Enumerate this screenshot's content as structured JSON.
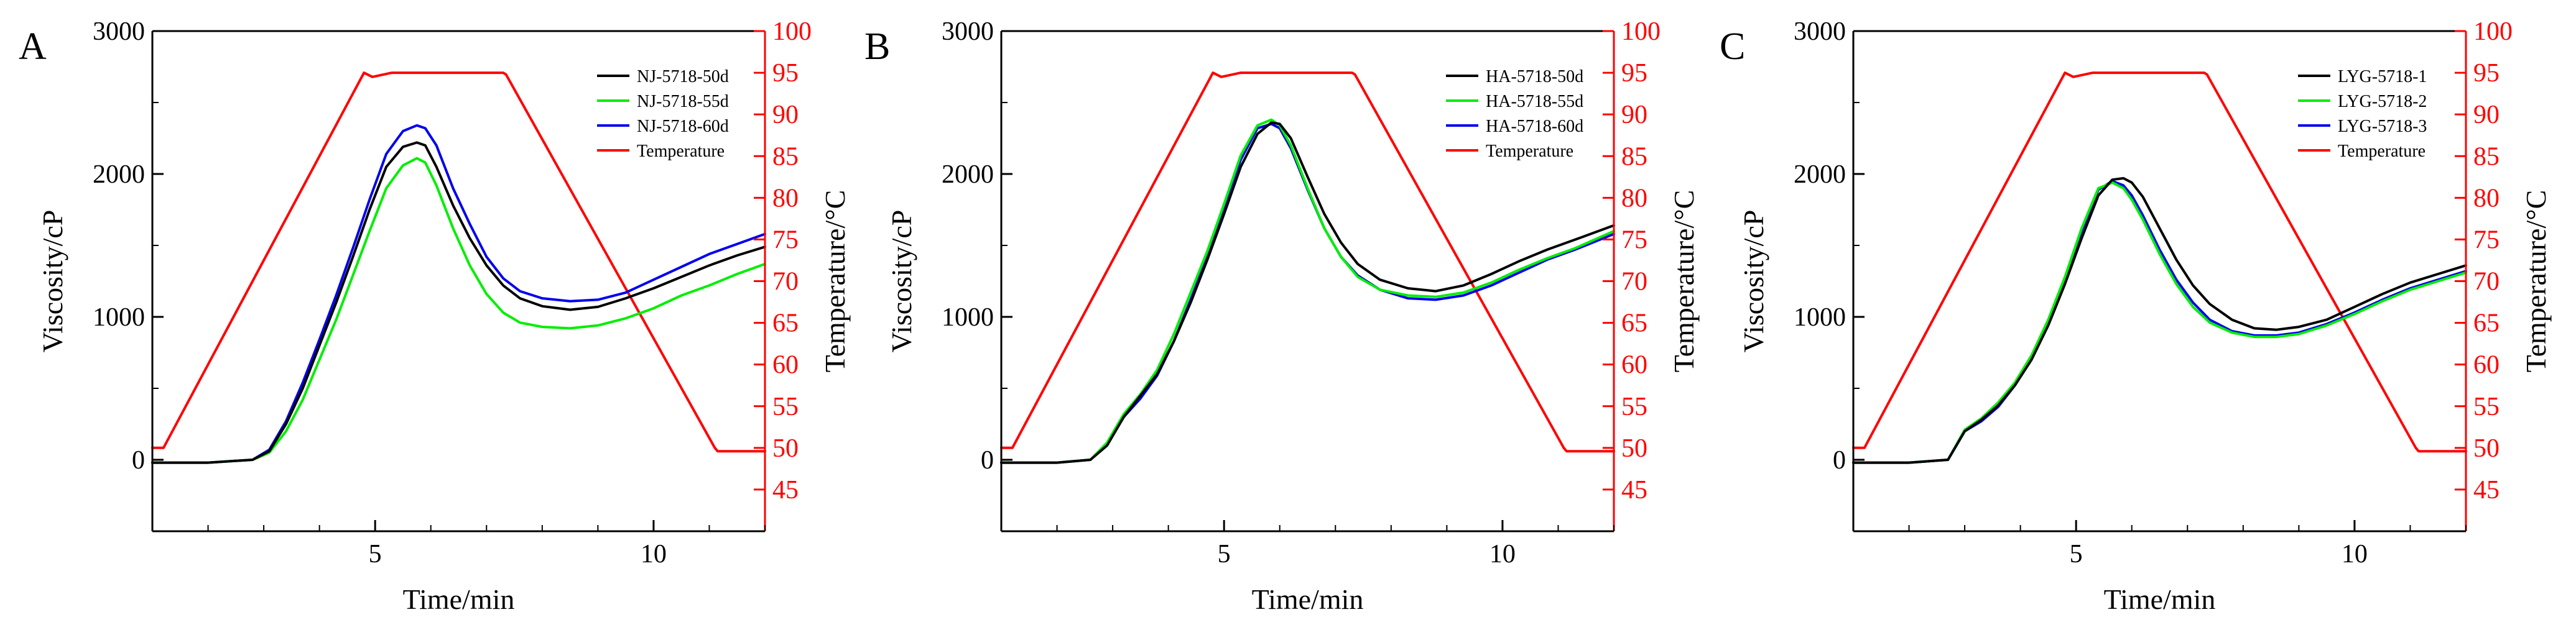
{
  "figure": {
    "panel_count": 3
  },
  "colors": {
    "black": "#000000",
    "green": "#00ee00",
    "blue": "#0000ee",
    "red": "#ff0000"
  },
  "chart_data": [
    {
      "type": "line",
      "panel_label": "A",
      "xlabel": "Time/min",
      "ylabel": "Viscosity/cP",
      "y2label": "Temperature/°C",
      "xlim": [
        1,
        12
      ],
      "ylim": [
        -500,
        3000
      ],
      "y2lim": [
        40,
        100
      ],
      "xticks": [
        5,
        10
      ],
      "yticks": [
        0,
        1000,
        2000,
        3000
      ],
      "y2ticks": [
        45,
        50,
        55,
        60,
        65,
        70,
        75,
        80,
        85,
        90,
        95,
        100
      ],
      "legend_position": "top-right",
      "series": [
        {
          "name": "NJ-5718-50d",
          "color": "#000000",
          "axis": "left",
          "x": [
            1,
            2,
            2.8,
            3.1,
            3.4,
            3.7,
            4,
            4.3,
            4.6,
            4.9,
            5.2,
            5.5,
            5.75,
            5.9,
            6.1,
            6.4,
            6.7,
            7,
            7.3,
            7.6,
            8,
            8.5,
            9,
            9.5,
            10,
            10.5,
            11,
            11.5,
            12
          ],
          "y": [
            -20,
            -20,
            0,
            60,
            250,
            500,
            800,
            1100,
            1420,
            1750,
            2050,
            2190,
            2220,
            2200,
            2050,
            1780,
            1550,
            1360,
            1220,
            1130,
            1075,
            1050,
            1070,
            1130,
            1200,
            1280,
            1360,
            1430,
            1490
          ]
        },
        {
          "name": "NJ-5718-55d",
          "color": "#00ee00",
          "axis": "left",
          "x": [
            1,
            2,
            2.8,
            3.1,
            3.4,
            3.7,
            4,
            4.3,
            4.6,
            4.9,
            5.2,
            5.5,
            5.75,
            5.9,
            6.1,
            6.4,
            6.7,
            7,
            7.3,
            7.6,
            8,
            8.5,
            9,
            9.5,
            10,
            10.5,
            11,
            11.5,
            12
          ],
          "y": [
            -20,
            -20,
            0,
            50,
            200,
            420,
            700,
            980,
            1290,
            1600,
            1900,
            2060,
            2110,
            2080,
            1920,
            1620,
            1360,
            1160,
            1030,
            960,
            930,
            920,
            940,
            990,
            1060,
            1150,
            1220,
            1300,
            1370
          ]
        },
        {
          "name": "NJ-5718-60d",
          "color": "#0000ee",
          "axis": "left",
          "x": [
            1,
            2,
            2.8,
            3.1,
            3.4,
            3.7,
            4,
            4.3,
            4.6,
            4.9,
            5.2,
            5.5,
            5.75,
            5.9,
            6.1,
            6.4,
            6.7,
            7,
            7.3,
            7.6,
            8,
            8.5,
            9,
            9.5,
            10,
            10.5,
            11,
            11.5,
            12
          ],
          "y": [
            -20,
            -20,
            0,
            70,
            270,
            540,
            840,
            1150,
            1480,
            1820,
            2140,
            2300,
            2340,
            2320,
            2200,
            1900,
            1650,
            1420,
            1270,
            1180,
            1130,
            1110,
            1120,
            1170,
            1260,
            1350,
            1440,
            1510,
            1580
          ]
        },
        {
          "name": "Temperature",
          "color": "#ff0000",
          "axis": "right",
          "x": [
            1,
            1.2,
            4.8,
            4.95,
            5.3,
            7.3,
            7.35,
            11.1,
            11.15,
            12
          ],
          "y": [
            50,
            50,
            95,
            94.5,
            95,
            95,
            94.8,
            50,
            49.6,
            49.6
          ]
        }
      ]
    },
    {
      "type": "line",
      "panel_label": "B",
      "xlabel": "Time/min",
      "ylabel": "Viscosity/cP",
      "y2label": "Temperature/°C",
      "xlim": [
        1,
        12
      ],
      "ylim": [
        -500,
        3000
      ],
      "y2lim": [
        40,
        100
      ],
      "xticks": [
        5,
        10
      ],
      "yticks": [
        0,
        1000,
        2000,
        3000
      ],
      "y2ticks": [
        45,
        50,
        55,
        60,
        65,
        70,
        75,
        80,
        85,
        90,
        95,
        100
      ],
      "legend_position": "top-right",
      "series": [
        {
          "name": "HA-5718-50d",
          "color": "#000000",
          "axis": "left",
          "x": [
            1,
            2,
            2.6,
            2.9,
            3.2,
            3.5,
            3.8,
            4.1,
            4.4,
            4.7,
            5,
            5.3,
            5.6,
            5.85,
            6,
            6.2,
            6.5,
            6.8,
            7.1,
            7.4,
            7.8,
            8.3,
            8.8,
            9.3,
            9.8,
            10.3,
            10.8,
            11.3,
            12
          ],
          "y": [
            -20,
            -20,
            0,
            100,
            300,
            450,
            600,
            830,
            1100,
            1400,
            1720,
            2050,
            2280,
            2360,
            2350,
            2250,
            1980,
            1720,
            1520,
            1370,
            1260,
            1200,
            1180,
            1220,
            1300,
            1390,
            1470,
            1540,
            1640
          ]
        },
        {
          "name": "HA-5718-55d",
          "color": "#00ee00",
          "axis": "left",
          "x": [
            1,
            2,
            2.6,
            2.9,
            3.2,
            3.5,
            3.8,
            4.1,
            4.4,
            4.7,
            5,
            5.3,
            5.6,
            5.85,
            6,
            6.2,
            6.5,
            6.8,
            7.1,
            7.4,
            7.8,
            8.3,
            8.8,
            9.3,
            9.8,
            10.3,
            10.8,
            11.3,
            12
          ],
          "y": [
            -20,
            -20,
            0,
            120,
            320,
            460,
            630,
            880,
            1170,
            1460,
            1790,
            2130,
            2340,
            2380,
            2340,
            2200,
            1900,
            1620,
            1420,
            1280,
            1190,
            1150,
            1140,
            1170,
            1240,
            1330,
            1410,
            1480,
            1600
          ]
        },
        {
          "name": "HA-5718-60d",
          "color": "#0000ee",
          "axis": "left",
          "x": [
            1,
            2,
            2.6,
            2.9,
            3.2,
            3.5,
            3.8,
            4.1,
            4.4,
            4.7,
            5,
            5.3,
            5.6,
            5.85,
            6,
            6.2,
            6.5,
            6.8,
            7.1,
            7.4,
            7.8,
            8.3,
            8.8,
            9.3,
            9.8,
            10.3,
            10.8,
            11.3,
            12
          ],
          "y": [
            -20,
            -20,
            0,
            110,
            300,
            430,
            590,
            830,
            1120,
            1420,
            1750,
            2100,
            2320,
            2350,
            2320,
            2180,
            1890,
            1620,
            1420,
            1290,
            1190,
            1130,
            1120,
            1150,
            1220,
            1310,
            1400,
            1470,
            1580
          ]
        },
        {
          "name": "Temperature",
          "color": "#ff0000",
          "axis": "right",
          "x": [
            1,
            1.2,
            4.8,
            4.95,
            5.3,
            7.3,
            7.35,
            11.1,
            11.15,
            12
          ],
          "y": [
            50,
            50,
            95,
            94.5,
            95,
            95,
            94.8,
            50,
            49.6,
            49.6
          ]
        }
      ]
    },
    {
      "type": "line",
      "panel_label": "C",
      "xlabel": "Time/min",
      "ylabel": "Viscosity/cP",
      "y2label": "Temperature/°C",
      "xlim": [
        1,
        12
      ],
      "ylim": [
        -500,
        3000
      ],
      "y2lim": [
        40,
        100
      ],
      "xticks": [
        5,
        10
      ],
      "yticks": [
        0,
        1000,
        2000,
        3000
      ],
      "y2ticks": [
        45,
        50,
        55,
        60,
        65,
        70,
        75,
        80,
        85,
        90,
        95,
        100
      ],
      "legend_position": "top-right",
      "series": [
        {
          "name": "LYG-5718-1",
          "color": "#000000",
          "axis": "left",
          "x": [
            1,
            2,
            2.7,
            3,
            3.3,
            3.6,
            3.9,
            4.2,
            4.5,
            4.8,
            5.1,
            5.4,
            5.65,
            5.85,
            6,
            6.2,
            6.5,
            6.8,
            7.1,
            7.4,
            7.8,
            8.2,
            8.6,
            9,
            9.5,
            10,
            10.5,
            11,
            11.5,
            12
          ],
          "y": [
            -20,
            -20,
            0,
            200,
            280,
            380,
            520,
            700,
            940,
            1230,
            1550,
            1850,
            1960,
            1970,
            1940,
            1840,
            1620,
            1400,
            1220,
            1090,
            980,
            920,
            910,
            930,
            980,
            1070,
            1160,
            1240,
            1300,
            1360
          ]
        },
        {
          "name": "LYG-5718-2",
          "color": "#00ee00",
          "axis": "left",
          "x": [
            1,
            2,
            2.7,
            3,
            3.3,
            3.6,
            3.9,
            4.2,
            4.5,
            4.8,
            5.1,
            5.4,
            5.65,
            5.85,
            6,
            6.2,
            6.5,
            6.8,
            7.1,
            7.4,
            7.8,
            8.2,
            8.6,
            9,
            9.5,
            10,
            10.5,
            11,
            11.5,
            12
          ],
          "y": [
            -20,
            -20,
            0,
            210,
            290,
            400,
            540,
            730,
            980,
            1280,
            1620,
            1900,
            1940,
            1900,
            1820,
            1680,
            1440,
            1230,
            1070,
            960,
            890,
            860,
            860,
            880,
            940,
            1020,
            1110,
            1190,
            1250,
            1310
          ]
        },
        {
          "name": "LYG-5718-3",
          "color": "#0000ee",
          "axis": "left",
          "x": [
            1,
            2,
            2.7,
            3,
            3.3,
            3.6,
            3.9,
            4.2,
            4.5,
            4.8,
            5.1,
            5.4,
            5.65,
            5.85,
            6,
            6.2,
            6.5,
            6.8,
            7.1,
            7.4,
            7.8,
            8.2,
            8.6,
            9,
            9.5,
            10,
            10.5,
            11,
            11.5,
            12
          ],
          "y": [
            -20,
            -20,
            0,
            200,
            270,
            370,
            520,
            710,
            960,
            1260,
            1600,
            1890,
            1950,
            1920,
            1850,
            1710,
            1470,
            1260,
            1100,
            980,
            900,
            870,
            870,
            890,
            950,
            1030,
            1120,
            1200,
            1260,
            1320
          ]
        },
        {
          "name": "Temperature",
          "color": "#ff0000",
          "axis": "right",
          "x": [
            1,
            1.2,
            4.8,
            4.95,
            5.3,
            7.3,
            7.35,
            11.1,
            11.15,
            12
          ],
          "y": [
            50,
            50,
            95,
            94.5,
            95,
            95,
            94.8,
            50,
            49.6,
            49.6
          ]
        }
      ]
    }
  ]
}
